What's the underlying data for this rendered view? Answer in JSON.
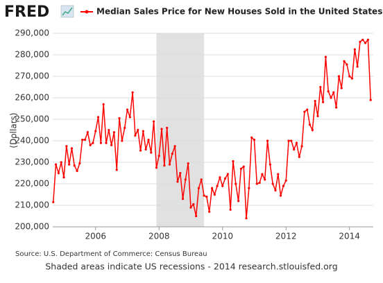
{
  "logo": "FRED",
  "chart_data": {
    "type": "line",
    "y_label": "(Dollars)",
    "source": "Source: U.S. Department of Commerce: Census Bureau",
    "note": "Shaded areas indicate US recessions - 2014 research.stlouisfed.org",
    "x": [
      2004.667,
      2004.75,
      2004.833,
      2004.917,
      2005.0,
      2005.083,
      2005.167,
      2005.25,
      2005.333,
      2005.417,
      2005.5,
      2005.583,
      2005.667,
      2005.75,
      2005.833,
      2005.917,
      2006.0,
      2006.083,
      2006.167,
      2006.25,
      2006.333,
      2006.417,
      2006.5,
      2006.583,
      2006.667,
      2006.75,
      2006.833,
      2006.917,
      2007.0,
      2007.083,
      2007.167,
      2007.25,
      2007.333,
      2007.417,
      2007.5,
      2007.583,
      2007.667,
      2007.75,
      2007.833,
      2007.917,
      2008.0,
      2008.083,
      2008.167,
      2008.25,
      2008.333,
      2008.417,
      2008.5,
      2008.583,
      2008.667,
      2008.75,
      2008.833,
      2008.917,
      2009.0,
      2009.083,
      2009.167,
      2009.25,
      2009.333,
      2009.417,
      2009.5,
      2009.583,
      2009.667,
      2009.75,
      2009.833,
      2009.917,
      2010.0,
      2010.083,
      2010.167,
      2010.25,
      2010.333,
      2010.417,
      2010.5,
      2010.583,
      2010.667,
      2010.75,
      2010.833,
      2010.917,
      2011.0,
      2011.083,
      2011.167,
      2011.25,
      2011.333,
      2011.417,
      2011.5,
      2011.583,
      2011.667,
      2011.75,
      2011.833,
      2011.917,
      2012.0,
      2012.083,
      2012.167,
      2012.25,
      2012.333,
      2012.417,
      2012.5,
      2012.583,
      2012.667,
      2012.75,
      2012.833,
      2012.917,
      2013.0,
      2013.083,
      2013.167,
      2013.25,
      2013.333,
      2013.417,
      2013.5,
      2013.583,
      2013.667,
      2013.75,
      2013.833,
      2013.917,
      2014.0,
      2014.083,
      2014.167,
      2014.25,
      2014.333,
      2014.417,
      2014.5,
      2014.583,
      2014.667
    ],
    "series": [
      {
        "name": "Median Sales Price for New Houses Sold in the United States",
        "color": "#ff0000",
        "values": [
          211500,
          229000,
          225000,
          230000,
          223000,
          237500,
          229000,
          236500,
          228500,
          226000,
          229500,
          240500,
          240500,
          244000,
          238000,
          239000,
          244500,
          251000,
          239000,
          257000,
          239000,
          245000,
          238000,
          244000,
          226500,
          250500,
          240000,
          246000,
          254500,
          251000,
          262500,
          242500,
          245000,
          235500,
          244500,
          236000,
          240500,
          234500,
          249000,
          227500,
          233000,
          245500,
          228500,
          246000,
          229000,
          234000,
          237500,
          221000,
          225000,
          213000,
          222000,
          229500,
          209000,
          210500,
          205000,
          218000,
          222000,
          214500,
          214000,
          207000,
          218000,
          215000,
          219000,
          223000,
          219000,
          222500,
          224500,
          208000,
          230500,
          220000,
          212000,
          227000,
          228000,
          204000,
          218000,
          241500,
          240500,
          220000,
          220500,
          224500,
          222000,
          240000,
          229000,
          220000,
          217000,
          224500,
          214500,
          219000,
          221500,
          240000,
          240000,
          236000,
          239000,
          232500,
          237500,
          253500,
          254500,
          247500,
          245000,
          258500,
          251500,
          265000,
          258000,
          279000,
          263000,
          260000,
          262500,
          255500,
          270000,
          264500,
          277000,
          275500,
          270000,
          269000,
          282500,
          274500,
          286000,
          287000,
          285500,
          287000,
          259000
        ]
      }
    ],
    "shaded_regions": [
      {
        "start": 2007.917,
        "end": 2009.417
      }
    ],
    "xlim": [
      2004.65,
      2014.75
    ],
    "xticks": [
      2006,
      2008,
      2010,
      2012,
      2014
    ],
    "ylim": [
      200000,
      290000
    ],
    "yticks": [
      {
        "value": 200000,
        "label": "200,000"
      },
      {
        "value": 210000,
        "label": "210,000"
      },
      {
        "value": 220000,
        "label": "220,000"
      },
      {
        "value": 230000,
        "label": "230,000"
      },
      {
        "value": 240000,
        "label": "240,000"
      },
      {
        "value": 250000,
        "label": "250,000"
      },
      {
        "value": 260000,
        "label": "260,000"
      },
      {
        "value": 270000,
        "label": "270,000"
      },
      {
        "value": 280000,
        "label": "280,000"
      },
      {
        "value": 290000,
        "label": "290,000"
      }
    ],
    "grid": true
  }
}
